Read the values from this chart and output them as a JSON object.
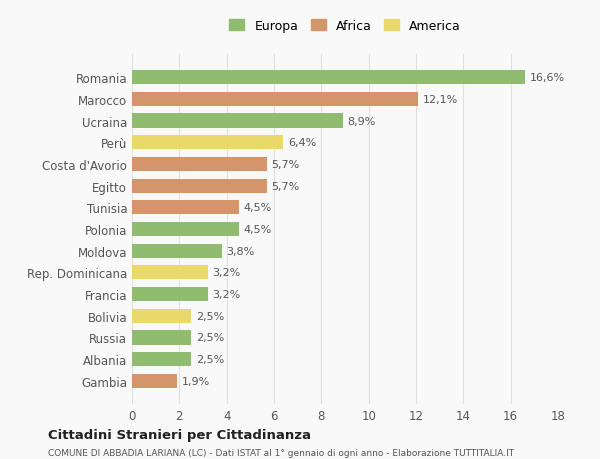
{
  "categories": [
    "Romania",
    "Marocco",
    "Ucraina",
    "Perù",
    "Costa d'Avorio",
    "Egitto",
    "Tunisia",
    "Polonia",
    "Moldova",
    "Rep. Dominicana",
    "Francia",
    "Bolivia",
    "Russia",
    "Albania",
    "Gambia"
  ],
  "values": [
    16.6,
    12.1,
    8.9,
    6.4,
    5.7,
    5.7,
    4.5,
    4.5,
    3.8,
    3.2,
    3.2,
    2.5,
    2.5,
    2.5,
    1.9
  ],
  "labels": [
    "16,6%",
    "12,1%",
    "8,9%",
    "6,4%",
    "5,7%",
    "5,7%",
    "4,5%",
    "4,5%",
    "3,8%",
    "3,2%",
    "3,2%",
    "2,5%",
    "2,5%",
    "2,5%",
    "1,9%"
  ],
  "continents": [
    "Europa",
    "Africa",
    "Europa",
    "America",
    "Africa",
    "Africa",
    "Africa",
    "Europa",
    "Europa",
    "America",
    "Europa",
    "America",
    "Europa",
    "Europa",
    "Africa"
  ],
  "colors": {
    "Europa": "#8fbc6e",
    "Africa": "#d4956a",
    "America": "#e8d96a"
  },
  "legend_order": [
    "Europa",
    "Africa",
    "America"
  ],
  "title": "Cittadini Stranieri per Cittadinanza",
  "subtitle": "COMUNE DI ABBADIA LARIANA (LC) - Dati ISTAT al 1° gennaio di ogni anno - Elaborazione TUTTITALIA.IT",
  "xlim": [
    0,
    18
  ],
  "xticks": [
    0,
    2,
    4,
    6,
    8,
    10,
    12,
    14,
    16,
    18
  ],
  "bg_color": "#f9f9f9",
  "grid_color": "#e0e0e0",
  "bar_height": 0.65
}
